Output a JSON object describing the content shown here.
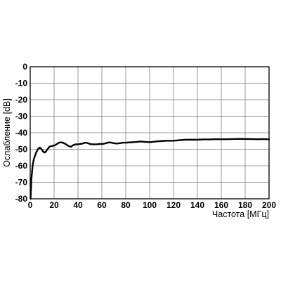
{
  "chart_data": {
    "type": "line",
    "title": "",
    "xlabel": "Частота [МГц]",
    "ylabel": "Ослабление [dB]",
    "xlim": [
      0,
      200
    ],
    "ylim": [
      -80,
      0
    ],
    "x_ticks": [
      "0",
      "20",
      "40",
      "60",
      "80",
      "100",
      "120",
      "140",
      "160",
      "180",
      "200"
    ],
    "y_ticks": [
      "0",
      "-10",
      "-20",
      "-30",
      "-40",
      "-50",
      "-60",
      "-70",
      "-80"
    ],
    "grid": true,
    "legend": "none",
    "line_color": "#000000",
    "grid_color": "#808080",
    "series": [
      {
        "x": [
          0.3,
          1,
          2,
          3,
          4,
          5,
          6,
          7,
          8,
          9,
          10,
          11,
          12,
          13,
          14,
          15,
          16,
          18,
          20,
          22,
          24,
          26,
          28,
          30,
          32,
          34,
          36,
          38,
          40,
          42,
          44,
          46,
          48,
          50,
          52,
          54,
          56,
          58,
          60,
          62,
          64,
          66,
          68,
          70,
          72,
          74,
          76,
          78,
          80,
          84,
          88,
          92,
          96,
          100,
          105,
          110,
          115,
          120,
          125,
          130,
          135,
          140,
          145,
          150,
          155,
          160,
          165,
          170,
          175,
          180,
          185,
          190,
          195,
          200
        ],
        "y": [
          -80,
          -68,
          -60,
          -56,
          -54,
          -52,
          -50.5,
          -49.5,
          -49,
          -49.5,
          -50.5,
          -51.5,
          -52,
          -51.5,
          -50.5,
          -49.5,
          -48.5,
          -48,
          -47.8,
          -47,
          -46,
          -45.8,
          -46.2,
          -47,
          -48,
          -48.5,
          -47.5,
          -47,
          -47,
          -46.8,
          -46.5,
          -46,
          -46.2,
          -46.8,
          -47,
          -47,
          -47,
          -46.8,
          -46.8,
          -46.6,
          -46.2,
          -45.8,
          -46,
          -46.3,
          -46.5,
          -46.4,
          -46.2,
          -46,
          -46,
          -45.8,
          -45.6,
          -45.3,
          -45.5,
          -45.7,
          -45.3,
          -45,
          -44.8,
          -44.8,
          -44.5,
          -44.2,
          -44.2,
          -44.2,
          -44,
          -44,
          -43.9,
          -43.9,
          -43.9,
          -43.8,
          -43.7,
          -43.8,
          -43.8,
          -43.9,
          -43.8,
          -44
        ]
      }
    ]
  }
}
